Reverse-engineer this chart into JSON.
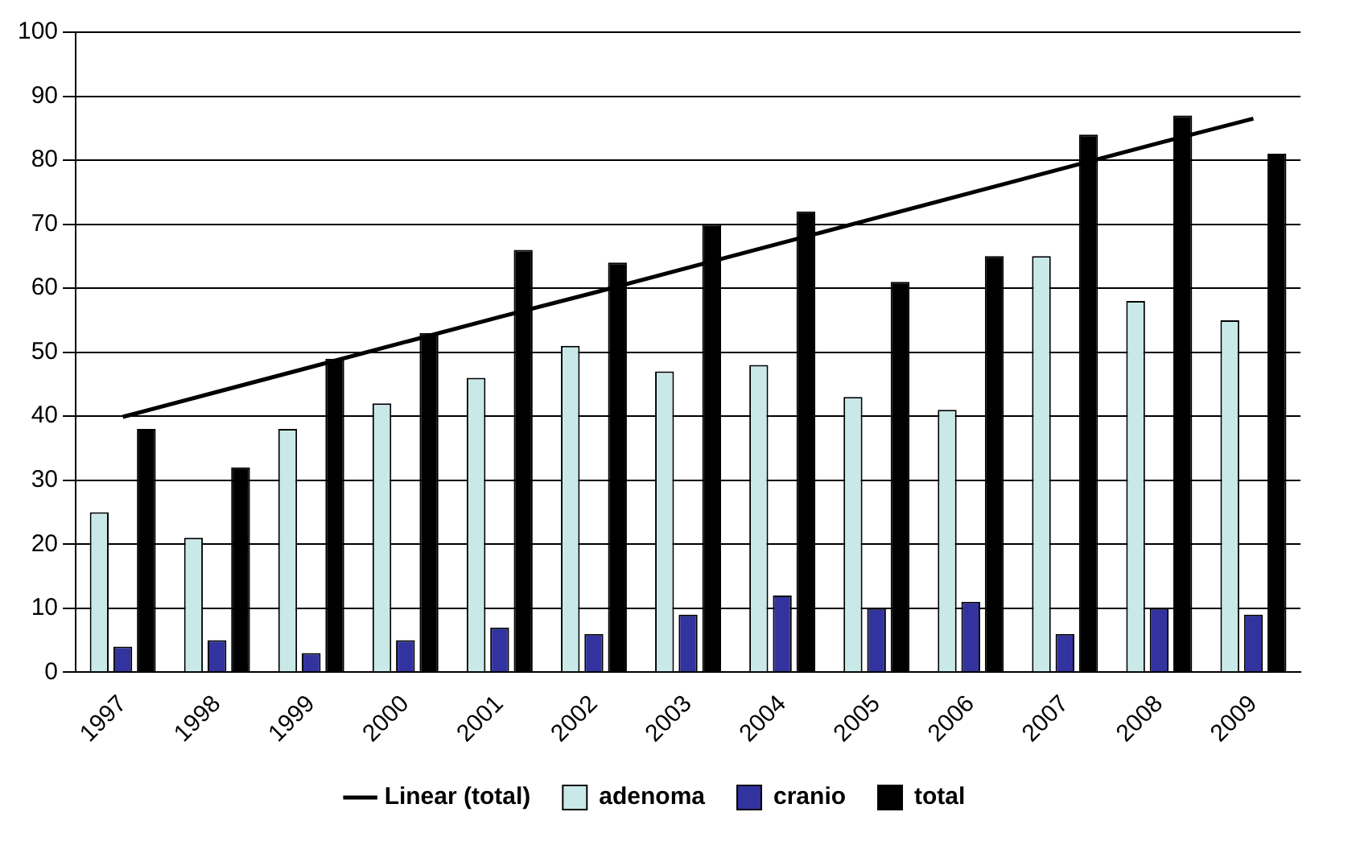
{
  "chart_data": {
    "type": "bar",
    "categories": [
      "1997",
      "1998",
      "1999",
      "2000",
      "2001",
      "2002",
      "2003",
      "2004",
      "2005",
      "2006",
      "2007",
      "2008",
      "2009"
    ],
    "series": [
      {
        "name": "adenoma",
        "color": "#c9e9e9",
        "values": [
          25,
          21,
          38,
          42,
          46,
          51,
          47,
          48,
          43,
          41,
          65,
          58,
          55
        ]
      },
      {
        "name": "cranio",
        "color": "#3333a0",
        "values": [
          4,
          5,
          3,
          5,
          7,
          6,
          9,
          12,
          10,
          11,
          6,
          10,
          9
        ]
      },
      {
        "name": "total",
        "color": "#000000",
        "values": [
          38,
          32,
          49,
          53,
          66,
          64,
          70,
          72,
          61,
          65,
          84,
          87,
          81
        ]
      },
      {
        "name": "Linear (total)",
        "type": "line",
        "color": "#000000",
        "marker": "none",
        "values": [
          39.9,
          43.8,
          47.7,
          51.6,
          55.5,
          59.3,
          63.2,
          67.1,
          71.0,
          74.9,
          78.8,
          82.7,
          86.5
        ]
      }
    ],
    "ylim": [
      0,
      100
    ],
    "yticks": [
      0,
      10,
      20,
      30,
      40,
      50,
      60,
      70,
      80,
      90,
      100
    ],
    "grid": "y",
    "legend": "bottom"
  }
}
